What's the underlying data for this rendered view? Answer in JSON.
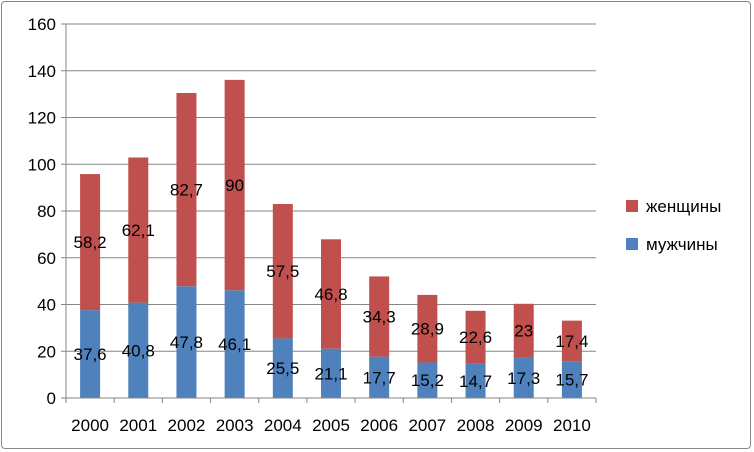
{
  "chart_data": {
    "type": "bar",
    "stacked": true,
    "categories": [
      "2000",
      "2001",
      "2002",
      "2003",
      "2004",
      "2005",
      "2006",
      "2007",
      "2008",
      "2009",
      "2010"
    ],
    "series": [
      {
        "name": "мужчины",
        "color": "#4F81BD",
        "values": [
          37.6,
          40.8,
          47.8,
          46.1,
          25.5,
          21.1,
          17.7,
          15.2,
          14.7,
          17.3,
          15.7
        ],
        "labels": [
          "37,6",
          "40,8",
          "47,8",
          "46,1",
          "25,5",
          "21,1",
          "17,7",
          "15,2",
          "14,7",
          "17,3",
          "15,7"
        ]
      },
      {
        "name": "женщины",
        "color": "#C0504D",
        "values": [
          58.2,
          62.1,
          82.7,
          90,
          57.5,
          46.8,
          34.3,
          28.9,
          22.6,
          23,
          17.4
        ],
        "labels": [
          "58,2",
          "62,1",
          "82,7",
          "90",
          "57,5",
          "46,8",
          "34,3",
          "28,9",
          "22,6",
          "23",
          "17,4"
        ]
      }
    ],
    "ylim": [
      0,
      160
    ],
    "yticks": [
      0,
      20,
      40,
      60,
      80,
      100,
      120,
      140,
      160
    ],
    "grid": true,
    "legend": {
      "position": "right",
      "order": [
        "женщины",
        "мужчины"
      ]
    },
    "title": "",
    "xlabel": "",
    "ylabel": ""
  }
}
